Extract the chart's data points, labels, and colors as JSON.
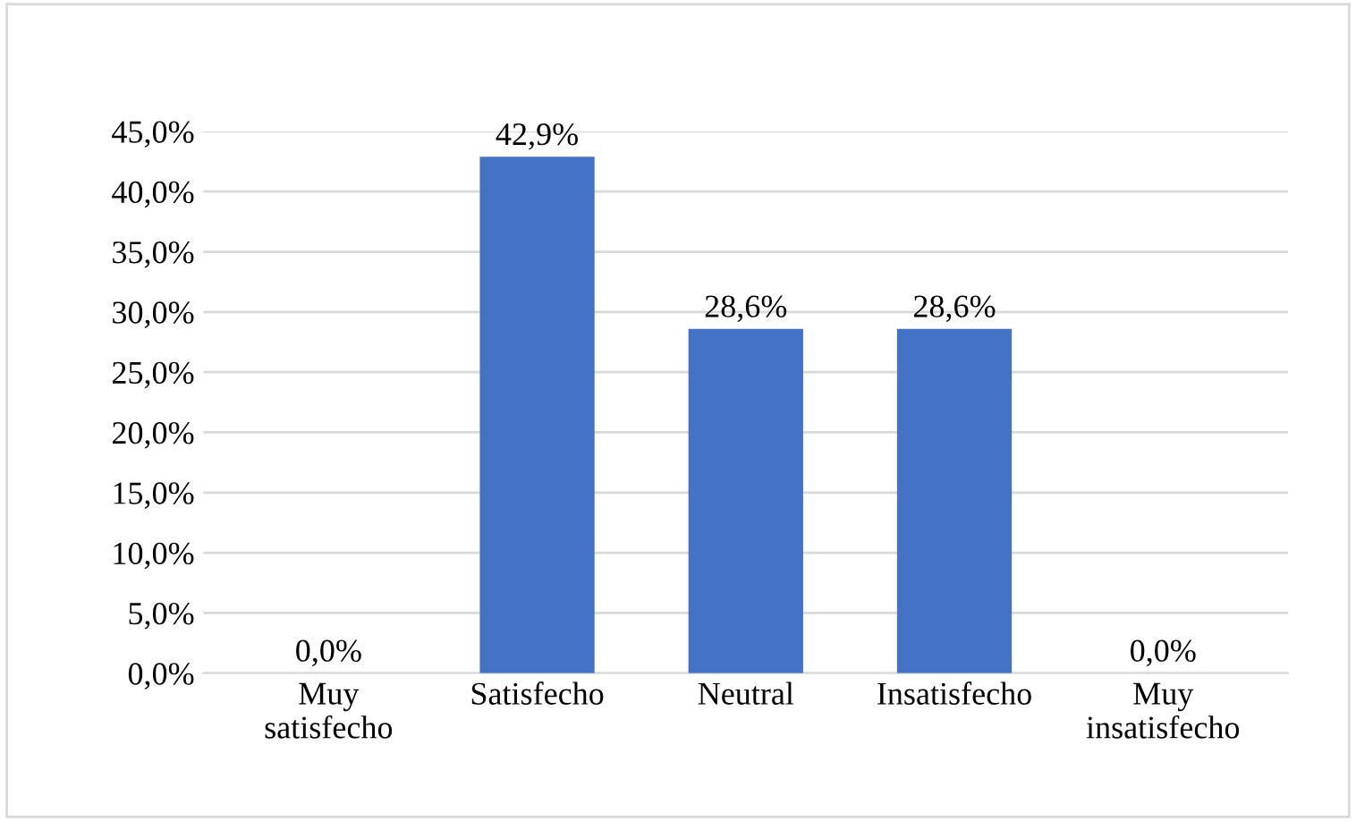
{
  "chart_data": {
    "type": "bar",
    "categories": [
      "Muy\nsatisfecho",
      "Satisfecho",
      "Neutral",
      "Insatisfecho",
      "Muy\ninsatisfecho"
    ],
    "values": [
      0,
      42.9,
      28.6,
      28.6,
      0
    ],
    "value_labels": [
      "0,0%",
      "42,9%",
      "28,6%",
      "28,6%",
      "0,0%"
    ],
    "color": "#4472c4",
    "ylim": [
      0,
      45
    ],
    "yticks": [
      {
        "value": 0,
        "label": "0,0%"
      },
      {
        "value": 5,
        "label": "5,0%"
      },
      {
        "value": 10,
        "label": "10,0%"
      },
      {
        "value": 15,
        "label": "15,0%"
      },
      {
        "value": 20,
        "label": "20,0%"
      },
      {
        "value": 25,
        "label": "25,0%"
      },
      {
        "value": 30,
        "label": "30,0%"
      },
      {
        "value": 35,
        "label": "35,0%"
      },
      {
        "value": 40,
        "label": "40,0%"
      },
      {
        "value": 45,
        "label": "45,0%"
      }
    ],
    "grid": "y",
    "legend": false
  }
}
